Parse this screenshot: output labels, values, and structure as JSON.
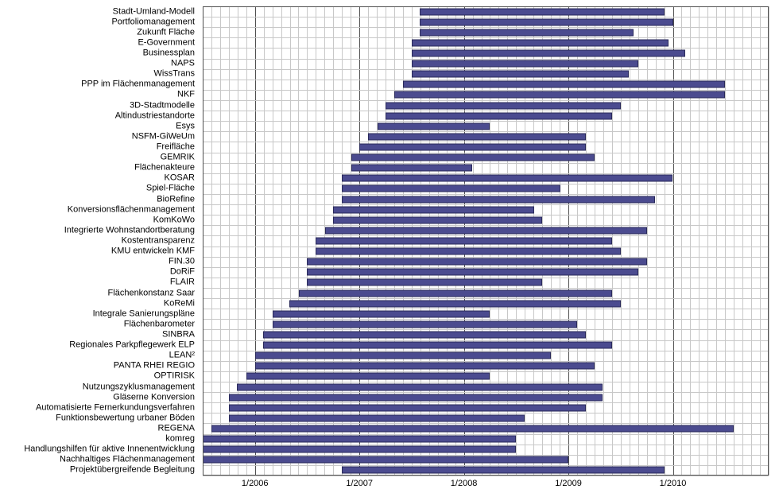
{
  "chart": {
    "type": "gantt-bar",
    "background_color": "#ffffff",
    "grid_minor_color": "#c8c8c8",
    "grid_major_color": "#505050",
    "bar_color": "#4b4b8f",
    "bar_border_color": "#2a2a5a",
    "label_color": "#000000",
    "label_fontsize": 11,
    "x_axis": {
      "min": 2005.5,
      "max": 2010.9167,
      "minor_step_months": 1,
      "major_ticks": [
        2006.0,
        2007.0,
        2008.0,
        2009.0,
        2010.0
      ],
      "major_labels": [
        "1/2006",
        "1/2007",
        "1/2008",
        "1/2009",
        "1/2010"
      ]
    },
    "items": [
      {
        "label": "Stadt-Umland-Modell",
        "start": 2007.58,
        "end": 2009.92
      },
      {
        "label": "Portfoliomanagement",
        "start": 2007.58,
        "end": 2010.0
      },
      {
        "label": "Zukunft Fläche",
        "start": 2007.58,
        "end": 2009.62
      },
      {
        "label": "E-Government",
        "start": 2007.5,
        "end": 2009.96
      },
      {
        "label": "Businessplan",
        "start": 2007.5,
        "end": 2010.12
      },
      {
        "label": "NAPS",
        "start": 2007.5,
        "end": 2009.67
      },
      {
        "label": "WissTrans",
        "start": 2007.5,
        "end": 2009.58
      },
      {
        "label": "PPP im Flächenmanagement",
        "start": 2007.42,
        "end": 2010.5
      },
      {
        "label": "NKF",
        "start": 2007.33,
        "end": 2010.5
      },
      {
        "label": "3D-Stadtmodelle",
        "start": 2007.25,
        "end": 2009.5
      },
      {
        "label": "Altindustriestandorte",
        "start": 2007.25,
        "end": 2009.42
      },
      {
        "label": "Esys",
        "start": 2007.17,
        "end": 2008.25
      },
      {
        "label": "NSFM-GiWeUm",
        "start": 2007.08,
        "end": 2009.17
      },
      {
        "label": "Freifläche",
        "start": 2007.0,
        "end": 2009.17
      },
      {
        "label": "GEMRIK",
        "start": 2006.92,
        "end": 2009.25
      },
      {
        "label": "Flächenakteure",
        "start": 2006.92,
        "end": 2008.08
      },
      {
        "label": "KOSAR",
        "start": 2006.83,
        "end": 2010.0
      },
      {
        "label": "Spiel-Fläche",
        "start": 2006.83,
        "end": 2008.92
      },
      {
        "label": "BioRefine",
        "start": 2006.83,
        "end": 2009.83
      },
      {
        "label": "Konversionsflächenmanagement",
        "start": 2006.75,
        "end": 2008.67
      },
      {
        "label": "KomKoWo",
        "start": 2006.75,
        "end": 2008.75
      },
      {
        "label": "Integrierte Wohnstandortberatung",
        "start": 2006.67,
        "end": 2009.75
      },
      {
        "label": "Kostentransparenz",
        "start": 2006.58,
        "end": 2009.42
      },
      {
        "label": "KMU entwickeln KMF",
        "start": 2006.58,
        "end": 2009.5
      },
      {
        "label": "FIN.30",
        "start": 2006.5,
        "end": 2009.75
      },
      {
        "label": "DoRiF",
        "start": 2006.5,
        "end": 2009.67
      },
      {
        "label": "FLAIR",
        "start": 2006.5,
        "end": 2008.75
      },
      {
        "label": "Flächenkonstanz Saar",
        "start": 2006.42,
        "end": 2009.42
      },
      {
        "label": "KoReMi",
        "start": 2006.33,
        "end": 2009.5
      },
      {
        "label": "Integrale Sanierungspläne",
        "start": 2006.17,
        "end": 2008.25
      },
      {
        "label": "Flächenbarometer",
        "start": 2006.17,
        "end": 2009.08
      },
      {
        "label": "SINBRA",
        "start": 2006.08,
        "end": 2009.17
      },
      {
        "label": "Regionales Parkpflegewerk ELP",
        "start": 2006.08,
        "end": 2009.42
      },
      {
        "label": "LEAN²",
        "start": 2006.0,
        "end": 2008.83
      },
      {
        "label": "PANTA RHEI REGIO",
        "start": 2006.0,
        "end": 2009.25
      },
      {
        "label": "OPTIRISK",
        "start": 2005.92,
        "end": 2008.25
      },
      {
        "label": "Nutzungszyklusmanagement",
        "start": 2005.83,
        "end": 2009.33
      },
      {
        "label": "Gläserne Konversion",
        "start": 2005.75,
        "end": 2009.33
      },
      {
        "label": "Automatisierte Fernerkundungsverfahren",
        "start": 2005.75,
        "end": 2009.17
      },
      {
        "label": "Funktionsbewertung urbaner Böden",
        "start": 2005.75,
        "end": 2008.58
      },
      {
        "label": "REGENA",
        "start": 2005.58,
        "end": 2010.58
      },
      {
        "label": "komreg",
        "start": 2005.5,
        "end": 2008.5
      },
      {
        "label": "Handlungshilfen für aktive Innenentwicklung",
        "start": 2005.5,
        "end": 2008.5
      },
      {
        "label": "Nachhaltiges Flächenmanagement",
        "start": 2005.5,
        "end": 2009.0
      },
      {
        "label": "Projektübergreifende Begleitung",
        "start": 2006.83,
        "end": 2009.92
      }
    ]
  }
}
